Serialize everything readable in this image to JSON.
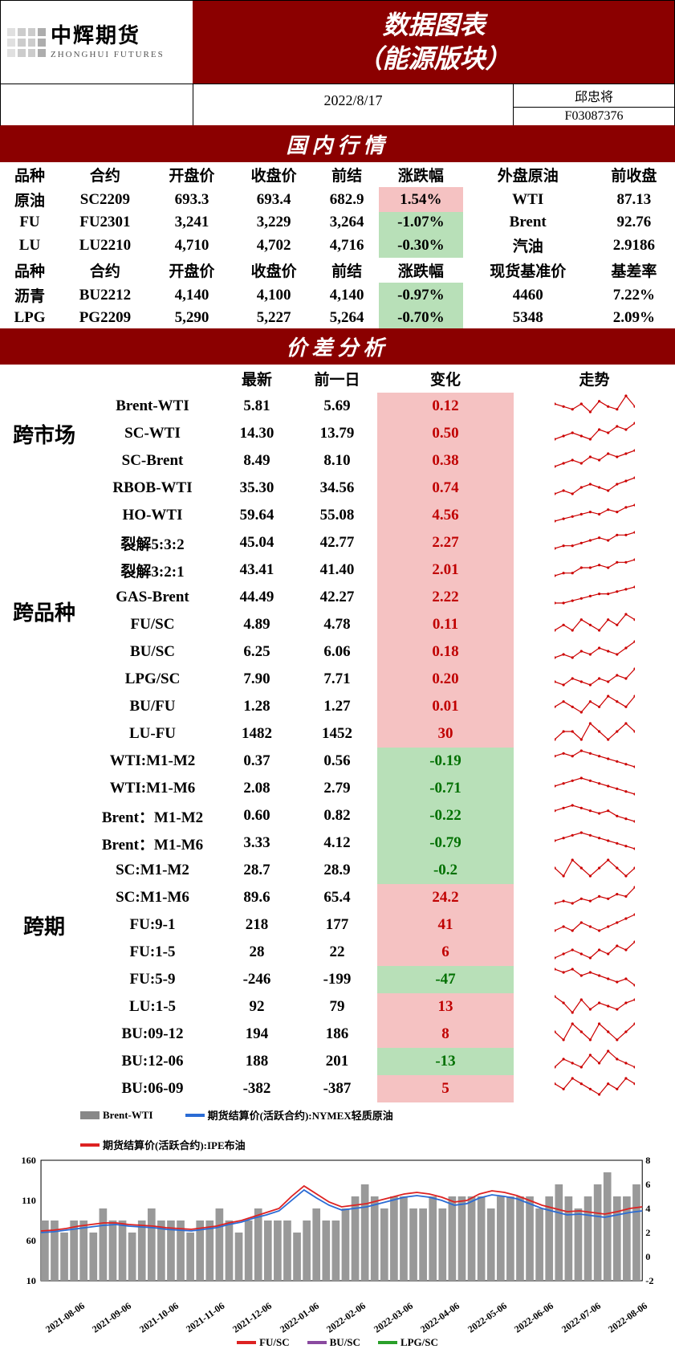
{
  "header": {
    "logo_cn": "中辉期货",
    "logo_en": "ZHONGHUI FUTURES",
    "title_line1": "数据图表",
    "title_line2": "（能源版块）",
    "date": "2022/8/17",
    "author": "邱忠将",
    "code": "F03087376"
  },
  "colors": {
    "brand": "#8b0000",
    "pos_bg": "#f5c2c2",
    "neg_bg": "#b8e0b8",
    "pos_text": "#c00000",
    "neg_text": "#007000"
  },
  "domestic": {
    "title": "国内行情",
    "head1": [
      "品种",
      "合约",
      "开盘价",
      "收盘价",
      "前结",
      "涨跌幅",
      "外盘原油",
      "前收盘"
    ],
    "rows1": [
      {
        "p": "原油",
        "c": "SC2209",
        "open": "693.3",
        "close": "693.4",
        "prev": "682.9",
        "pct": "1.54%",
        "pct_sign": 1,
        "ext": "WTI",
        "extv": "87.13"
      },
      {
        "p": "FU",
        "c": "FU2301",
        "open": "3,241",
        "close": "3,229",
        "prev": "3,264",
        "pct": "-1.07%",
        "pct_sign": -1,
        "ext": "Brent",
        "extv": "92.76"
      },
      {
        "p": "LU",
        "c": "LU2210",
        "open": "4,710",
        "close": "4,702",
        "prev": "4,716",
        "pct": "-0.30%",
        "pct_sign": -1,
        "ext": "汽油",
        "extv": "2.9186"
      }
    ],
    "head2": [
      "品种",
      "合约",
      "开盘价",
      "收盘价",
      "前结",
      "涨跌幅",
      "现货基准价",
      "基差率"
    ],
    "rows2": [
      {
        "p": "沥青",
        "c": "BU2212",
        "open": "4,140",
        "close": "4,100",
        "prev": "4,140",
        "pct": "-0.97%",
        "pct_sign": -1,
        "ext": "4460",
        "extv": "7.22%"
      },
      {
        "p": "LPG",
        "c": "PG2209",
        "open": "5,290",
        "close": "5,227",
        "prev": "5,264",
        "pct": "-0.70%",
        "pct_sign": -1,
        "ext": "5348",
        "extv": "2.09%"
      }
    ]
  },
  "spread": {
    "title": "价差分析",
    "head": [
      "",
      "",
      "最新",
      "前一日",
      "变化",
      "走势"
    ],
    "groups": [
      {
        "name": "跨市场",
        "rows": [
          {
            "n": "Brent-WTI",
            "a": "5.81",
            "b": "5.69",
            "c": "0.12",
            "s": 1,
            "spark": [
              6,
              5,
              4,
              6,
              3,
              7,
              5,
              4,
              9,
              5
            ]
          },
          {
            "n": "SC-WTI",
            "a": "14.30",
            "b": "13.79",
            "c": "0.50",
            "s": 1,
            "spark": [
              3,
              4,
              5,
              4,
              3,
              6,
              5,
              7,
              6,
              8
            ]
          },
          {
            "n": "SC-Brent",
            "a": "8.49",
            "b": "8.10",
            "c": "0.38",
            "s": 1,
            "spark": [
              2,
              3,
              4,
              3,
              5,
              4,
              6,
              5,
              6,
              7
            ]
          }
        ]
      },
      {
        "name": "跨品种",
        "rows": [
          {
            "n": "RBOB-WTI",
            "a": "35.30",
            "b": "34.56",
            "c": "0.74",
            "s": 1,
            "spark": [
              3,
              4,
              3,
              5,
              6,
              5,
              4,
              6,
              7,
              8
            ]
          },
          {
            "n": "HO-WTI",
            "a": "59.64",
            "b": "55.08",
            "c": "4.56",
            "s": 1,
            "spark": [
              2,
              3,
              4,
              5,
              6,
              5,
              7,
              6,
              8,
              9
            ]
          },
          {
            "n": "裂解5:3:2",
            "a": "45.04",
            "b": "42.77",
            "c": "2.27",
            "s": 1,
            "spark": [
              2,
              3,
              3,
              4,
              5,
              6,
              5,
              7,
              7,
              8
            ]
          },
          {
            "n": "裂解3:2:1",
            "a": "43.41",
            "b": "41.40",
            "c": "2.01",
            "s": 1,
            "spark": [
              2,
              3,
              3,
              5,
              5,
              6,
              5,
              7,
              7,
              8
            ]
          },
          {
            "n": "GAS-Brent",
            "a": "44.49",
            "b": "42.27",
            "c": "2.22",
            "s": 1,
            "spark": [
              2,
              2,
              3,
              4,
              5,
              6,
              6,
              7,
              8,
              9
            ]
          },
          {
            "n": "FU/SC",
            "a": "4.89",
            "b": "4.78",
            "c": "0.11",
            "s": 1,
            "spark": [
              4,
              5,
              4,
              6,
              5,
              4,
              6,
              5,
              7,
              6
            ]
          },
          {
            "n": "BU/SC",
            "a": "6.25",
            "b": "6.06",
            "c": "0.18",
            "s": 1,
            "spark": [
              3,
              4,
              3,
              5,
              4,
              6,
              5,
              4,
              6,
              8
            ]
          },
          {
            "n": "LPG/SC",
            "a": "7.90",
            "b": "7.71",
            "c": "0.20",
            "s": 1,
            "spark": [
              4,
              3,
              5,
              4,
              3,
              5,
              4,
              6,
              5,
              8
            ]
          },
          {
            "n": "BU/FU",
            "a": "1.28",
            "b": "1.27",
            "c": "0.01",
            "s": 1,
            "spark": [
              4,
              5,
              4,
              3,
              5,
              4,
              6,
              5,
              4,
              6
            ]
          },
          {
            "n": "LU-FU",
            "a": "1482",
            "b": "1452",
            "c": "30",
            "s": 1,
            "spark": [
              4,
              5,
              5,
              4,
              6,
              5,
              4,
              5,
              6,
              5
            ]
          }
        ]
      },
      {
        "name": "跨期",
        "rows": [
          {
            "n": "WTI:M1-M2",
            "a": "0.37",
            "b": "0.56",
            "c": "-0.19",
            "s": -1,
            "spark": [
              7,
              8,
              7,
              9,
              8,
              7,
              6,
              5,
              4,
              3
            ]
          },
          {
            "n": "WTI:M1-M6",
            "a": "2.08",
            "b": "2.79",
            "c": "-0.71",
            "s": -1,
            "spark": [
              6,
              7,
              8,
              9,
              8,
              7,
              6,
              5,
              4,
              3
            ]
          },
          {
            "n": "Brent：M1-M2",
            "a": "0.60",
            "b": "0.82",
            "c": "-0.22",
            "s": -1,
            "spark": [
              7,
              8,
              9,
              8,
              7,
              6,
              7,
              5,
              4,
              3
            ]
          },
          {
            "n": "Brent：M1-M6",
            "a": "3.33",
            "b": "4.12",
            "c": "-0.79",
            "s": -1,
            "spark": [
              6,
              7,
              8,
              9,
              8,
              7,
              6,
              5,
              4,
              3
            ]
          },
          {
            "n": "SC:M1-M2",
            "a": "28.7",
            "b": "28.9",
            "c": "-0.2",
            "s": -1,
            "spark": [
              5,
              4,
              6,
              5,
              4,
              5,
              6,
              5,
              4,
              5
            ]
          },
          {
            "n": "SC:M1-M6",
            "a": "89.6",
            "b": "65.4",
            "c": "24.2",
            "s": 1,
            "spark": [
              2,
              3,
              2,
              4,
              3,
              5,
              4,
              6,
              5,
              9
            ]
          },
          {
            "n": "FU:9-1",
            "a": "218",
            "b": "177",
            "c": "41",
            "s": 1,
            "spark": [
              4,
              5,
              4,
              6,
              5,
              4,
              5,
              6,
              7,
              8
            ]
          },
          {
            "n": "FU:1-5",
            "a": "28",
            "b": "22",
            "c": "6",
            "s": 1,
            "spark": [
              3,
              4,
              5,
              4,
              3,
              5,
              4,
              6,
              5,
              7
            ]
          },
          {
            "n": "FU:5-9",
            "a": "-246",
            "b": "-199",
            "c": "-47",
            "s": -1,
            "spark": [
              7,
              6,
              7,
              5,
              6,
              5,
              4,
              3,
              4,
              2
            ]
          },
          {
            "n": "LU:1-5",
            "a": "92",
            "b": "79",
            "c": "13",
            "s": 1,
            "spark": [
              8,
              6,
              3,
              7,
              4,
              6,
              5,
              4,
              6,
              7
            ]
          },
          {
            "n": "BU:09-12",
            "a": "194",
            "b": "186",
            "c": "8",
            "s": 1,
            "spark": [
              5,
              4,
              6,
              5,
              4,
              6,
              5,
              4,
              5,
              6
            ]
          },
          {
            "n": "BU:12-06",
            "a": "188",
            "b": "201",
            "c": "-13",
            "s": -1,
            "spark": [
              3,
              5,
              4,
              3,
              6,
              4,
              7,
              5,
              4,
              3
            ]
          },
          {
            "n": "BU:06-09",
            "a": "-382",
            "b": "-387",
            "c": "5",
            "s": 1,
            "spark": [
              5,
              4,
              6,
              5,
              4,
              3,
              5,
              4,
              6,
              5
            ]
          }
        ]
      }
    ]
  },
  "chart_top": {
    "legend": [
      {
        "label": "Brent-WTI",
        "color": "#888",
        "thick": true
      },
      {
        "label": "期货结算价(活跃合约):NYMEX轻质原油",
        "color": "#2a6bd4"
      },
      {
        "label": "期货结算价(活跃合约):IPE布油",
        "color": "#d22"
      }
    ],
    "y_left": {
      "ticks": [
        10,
        60,
        110,
        160
      ]
    },
    "y_right": {
      "ticks": [
        -2,
        0,
        2,
        4,
        6,
        8
      ]
    },
    "x_ticks": [
      "2021-08-06",
      "2021-09-06",
      "2021-10-06",
      "2021-11-06",
      "2021-12-06",
      "2022-01-06",
      "2022-02-06",
      "2022-03-06",
      "2022-04-06",
      "2022-05-06",
      "2022-06-06",
      "2022-07-06",
      "2022-08-06"
    ],
    "bars": [
      3,
      3,
      2,
      3,
      3,
      2,
      4,
      3,
      3,
      2,
      3,
      4,
      3,
      3,
      3,
      2,
      3,
      3,
      4,
      3,
      2,
      3,
      4,
      3,
      3,
      3,
      2,
      3,
      4,
      3,
      3,
      4,
      5,
      6,
      5,
      4,
      5,
      5,
      4,
      4,
      5,
      4,
      5,
      5,
      5,
      5,
      4,
      5,
      5,
      5,
      5,
      4,
      5,
      6,
      5,
      4,
      5,
      6,
      7,
      5,
      5,
      6
    ],
    "line_red": [
      72,
      73,
      75,
      78,
      80,
      82,
      82,
      80,
      79,
      78,
      76,
      75,
      74,
      76,
      78,
      82,
      85,
      90,
      95,
      100,
      115,
      128,
      118,
      108,
      102,
      104,
      106,
      110,
      114,
      118,
      120,
      118,
      114,
      108,
      110,
      118,
      122,
      120,
      116,
      110,
      104,
      100,
      96,
      97,
      95,
      93,
      96,
      100,
      102
    ],
    "line_blue": [
      70,
      71,
      73,
      75,
      77,
      79,
      80,
      78,
      77,
      76,
      74,
      73,
      72,
      74,
      76,
      80,
      83,
      88,
      92,
      97,
      110,
      123,
      113,
      104,
      98,
      100,
      102,
      106,
      110,
      114,
      116,
      114,
      110,
      104,
      106,
      113,
      117,
      115,
      112,
      106,
      100,
      96,
      92,
      93,
      91,
      89,
      92,
      95,
      97
    ]
  },
  "chart_bottom_legend": [
    {
      "label": "FU/SC",
      "color": "#d22"
    },
    {
      "label": "BU/SC",
      "color": "#8a4aa0"
    },
    {
      "label": "LPG/SC",
      "color": "#2aa02a"
    }
  ]
}
